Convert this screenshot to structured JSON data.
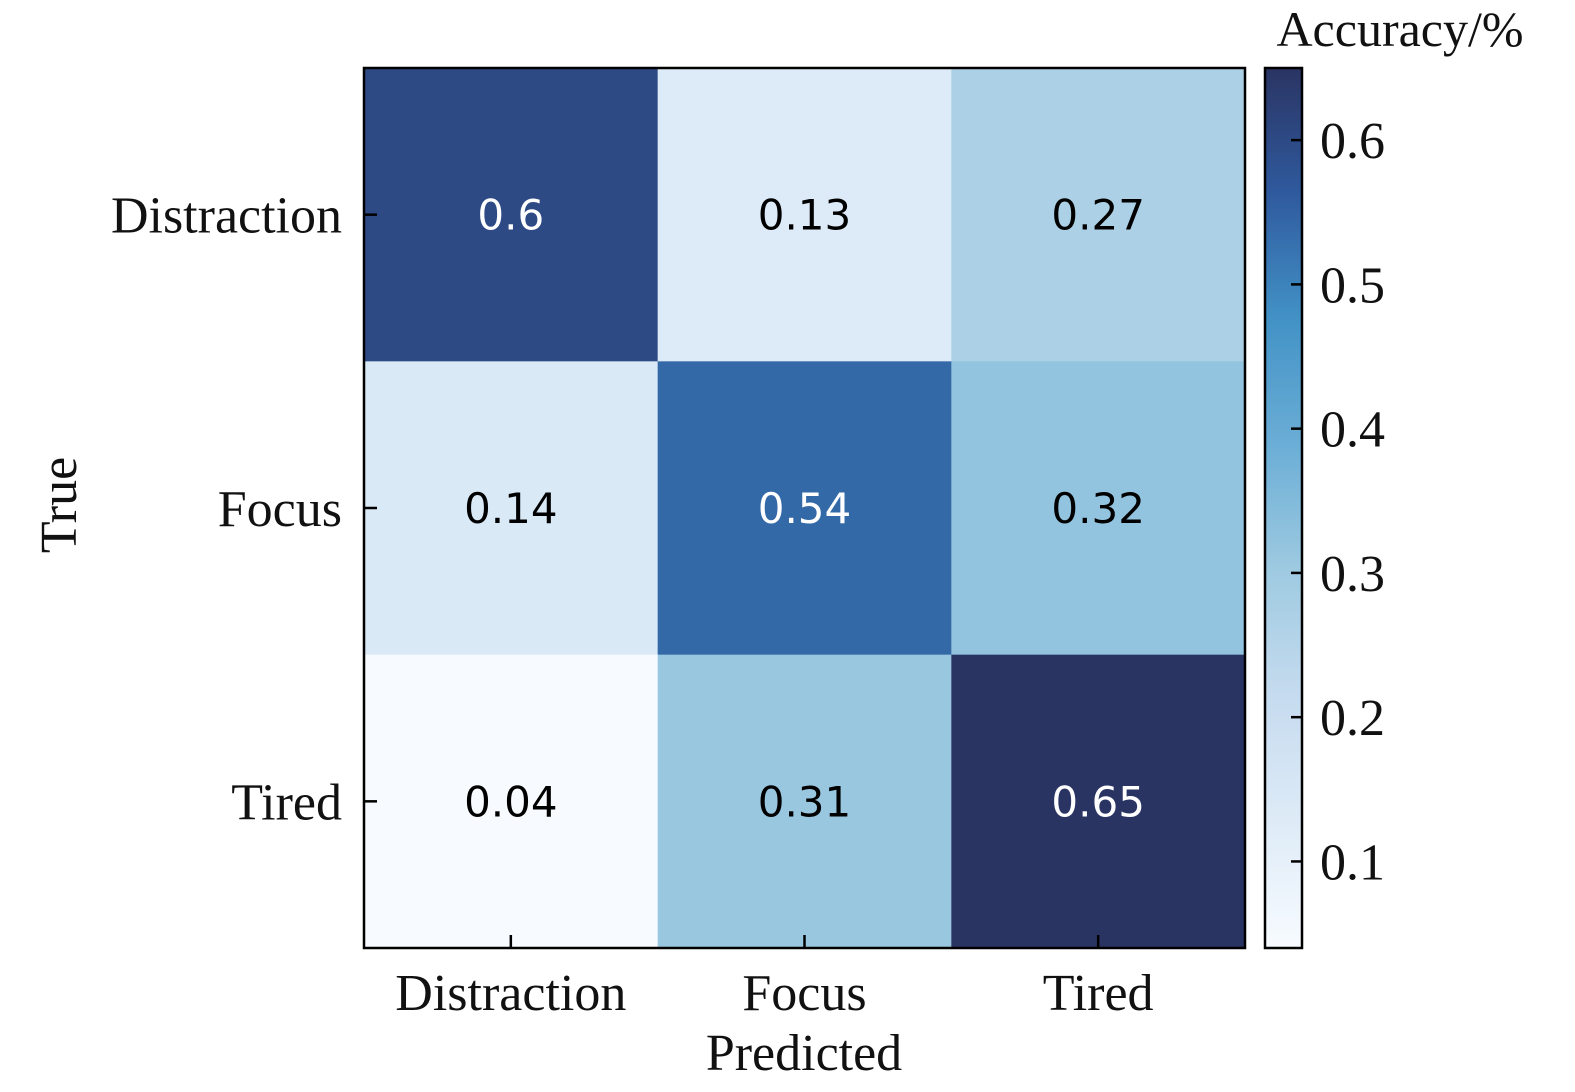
{
  "chart_data": {
    "type": "heatmap",
    "title": "",
    "xlabel": "Predicted",
    "ylabel": "True",
    "x_categories": [
      "Distraction",
      "Focus",
      "Tired"
    ],
    "y_categories": [
      "Distraction",
      "Focus",
      "Tired"
    ],
    "values": [
      [
        0.6,
        0.13,
        0.27
      ],
      [
        0.14,
        0.54,
        0.32
      ],
      [
        0.04,
        0.31,
        0.65
      ]
    ],
    "value_labels": [
      [
        "0.6",
        "0.13",
        "0.27"
      ],
      [
        "0.14",
        "0.54",
        "0.32"
      ],
      [
        "0.04",
        "0.31",
        "0.65"
      ]
    ],
    "colorbar": {
      "label": "Accuracy/%",
      "range": [
        0.04,
        0.65
      ],
      "ticks": [
        0.1,
        0.2,
        0.3,
        0.4,
        0.5,
        0.6
      ],
      "tick_labels": [
        "0.1",
        "0.2",
        "0.3",
        "0.4",
        "0.5",
        "0.6"
      ]
    },
    "colormap": [
      "#f7fbff",
      "#deebf7",
      "#c6dbef",
      "#9ecae1",
      "#6baed6",
      "#4292c6",
      "#2f5a9e",
      "#2a3463"
    ],
    "text_colors": {
      "light": "#ffffff",
      "dark": "#000000"
    }
  }
}
